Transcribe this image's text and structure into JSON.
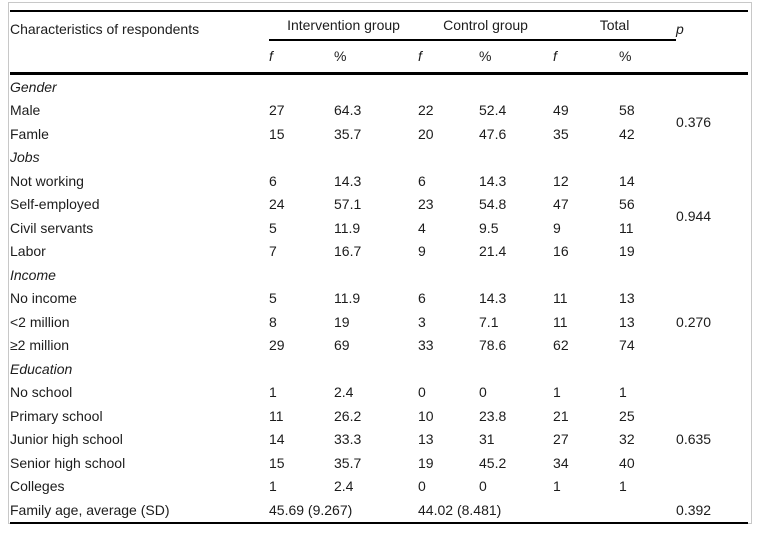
{
  "header": {
    "characteristics": "Characteristics of respondents",
    "groups": [
      {
        "label": "Intervention group"
      },
      {
        "label": "Control group"
      },
      {
        "label": "Total"
      }
    ],
    "p_label": "p",
    "f_label": "f",
    "pct_label": "%"
  },
  "rows": [
    {
      "type": "section",
      "label": "Gender"
    },
    {
      "type": "data",
      "label": "Male",
      "f1": "27",
      "pct1": "64.3",
      "f2": "22",
      "pct2": "52.4",
      "f3": "49",
      "pct3": "58"
    },
    {
      "type": "data",
      "label": "Famle",
      "f1": "15",
      "pct1": "35.7",
      "f2": "20",
      "pct2": "47.6",
      "f3": "35",
      "pct3": "42"
    },
    {
      "type": "section",
      "label": "Jobs"
    },
    {
      "type": "data",
      "label": "Not working",
      "f1": "6",
      "pct1": "14.3",
      "f2": "6",
      "pct2": "14.3",
      "f3": "12",
      "pct3": "14"
    },
    {
      "type": "data",
      "label": "Self-employed",
      "f1": "24",
      "pct1": "57.1",
      "f2": "23",
      "pct2": "54.8",
      "f3": "47",
      "pct3": "56"
    },
    {
      "type": "data",
      "label": "Civil servants",
      "f1": "5",
      "pct1": "11.9",
      "f2": "4",
      "pct2": "9.5",
      "f3": "9",
      "pct3": "11"
    },
    {
      "type": "data",
      "label": "Labor",
      "f1": "7",
      "pct1": "16.7",
      "f2": "9",
      "pct2": "21.4",
      "f3": "16",
      "pct3": "19"
    },
    {
      "type": "section",
      "label": "Income"
    },
    {
      "type": "data",
      "label": "No income",
      "f1": "5",
      "pct1": "11.9",
      "f2": "6",
      "pct2": "14.3",
      "f3": "11",
      "pct3": "13"
    },
    {
      "type": "data",
      "label": "<2 million",
      "f1": "8",
      "pct1": "19",
      "f2": "3",
      "pct2": "7.1",
      "f3": "11",
      "pct3": "13"
    },
    {
      "type": "data",
      "label": "≥2 million",
      "f1": "29",
      "pct1": "69",
      "f2": "33",
      "pct2": "78.6",
      "f3": "62",
      "pct3": "74"
    },
    {
      "type": "section",
      "label": "Education"
    },
    {
      "type": "data",
      "label": "No school",
      "f1": "1",
      "pct1": "2.4",
      "f2": "0",
      "pct2": "0",
      "f3": "1",
      "pct3": "1"
    },
    {
      "type": "data",
      "label": "Primary school",
      "f1": "11",
      "pct1": "26.2",
      "f2": "10",
      "pct2": "23.8",
      "f3": "21",
      "pct3": "25"
    },
    {
      "type": "data",
      "label": "Junior high school",
      "f1": "14",
      "pct1": "33.3",
      "f2": "13",
      "pct2": "31",
      "f3": "27",
      "pct3": "32"
    },
    {
      "type": "data",
      "label": "Senior high school",
      "f1": "15",
      "pct1": "35.7",
      "f2": "19",
      "pct2": "45.2",
      "f3": "34",
      "pct3": "40"
    },
    {
      "type": "data",
      "label": "Colleges",
      "f1": "1",
      "pct1": "2.4",
      "f2": "0",
      "pct2": "0",
      "f3": "1",
      "pct3": "1"
    },
    {
      "type": "summary",
      "label": "Family age, average (SD)",
      "intervention": "45.69 (9.267)",
      "control": "44.02 (8.481)"
    }
  ],
  "p_values": {
    "gender": "0.376",
    "jobs": "0.944",
    "income": "0.270",
    "education": "0.635",
    "family_age": "0.392"
  }
}
